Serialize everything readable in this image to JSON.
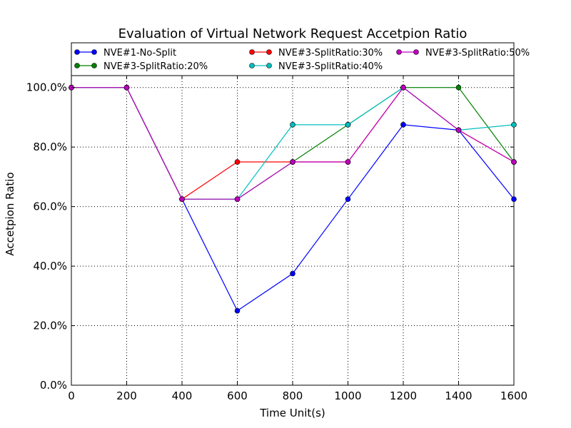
{
  "chart_data": {
    "type": "line",
    "title": "Evaluation of Virtual Network Request Accetpion Ratio",
    "xlabel": "Time Unit(s)",
    "ylabel": "Accetpion Ratio",
    "x": [
      0,
      200,
      400,
      600,
      800,
      1000,
      1200,
      1400,
      1600
    ],
    "xlim": [
      0,
      1600
    ],
    "ylim": [
      0,
      1.04
    ],
    "xticks": [
      0,
      200,
      400,
      600,
      800,
      1000,
      1200,
      1400,
      1600
    ],
    "yticks": [
      0,
      0.2,
      0.4,
      0.6,
      0.8,
      1.0
    ],
    "ytick_labels": [
      "0.0%",
      "20.0%",
      "40.0%",
      "60.0%",
      "80.0%",
      "100.0%"
    ],
    "grid": true,
    "legend_position": "top",
    "series": [
      {
        "name": "NVE#1-No-Split",
        "color": "#0000ff",
        "values": [
          1.0,
          1.0,
          0.625,
          0.25,
          0.375,
          0.625,
          0.875,
          0.857,
          0.625
        ]
      },
      {
        "name": "NVE#3-SplitRatio:20%",
        "color": "#008000",
        "values": [
          1.0,
          1.0,
          0.625,
          0.625,
          0.75,
          0.875,
          1.0,
          1.0,
          0.75
        ]
      },
      {
        "name": "NVE#3-SplitRatio:30%",
        "color": "#ff0000",
        "values": [
          1.0,
          1.0,
          0.625,
          0.75,
          0.75,
          0.75,
          1.0,
          0.857,
          0.75
        ]
      },
      {
        "name": "NVE#3-SplitRatio:40%",
        "color": "#00bfbf",
        "values": [
          1.0,
          1.0,
          0.625,
          0.625,
          0.875,
          0.875,
          1.0,
          0.857,
          0.875
        ]
      },
      {
        "name": "NVE#3-SplitRatio:50%",
        "color": "#bf00bf",
        "values": [
          1.0,
          1.0,
          0.625,
          0.625,
          0.75,
          0.75,
          1.0,
          0.857,
          0.75
        ]
      }
    ]
  }
}
